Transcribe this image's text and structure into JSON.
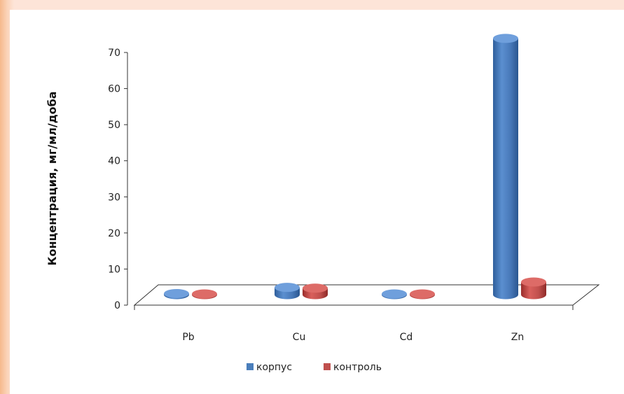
{
  "chart_data": {
    "type": "bar",
    "categories": [
      "Pb",
      "Cu",
      "Cd",
      "Zn"
    ],
    "series": [
      {
        "name": "корпус",
        "values": [
          0.3,
          2.0,
          0.2,
          71.0
        ],
        "color": "#4a7ebb"
      },
      {
        "name": "контроль",
        "values": [
          0.2,
          1.8,
          0.2,
          3.5
        ],
        "color": "#c0504d"
      }
    ],
    "title": "",
    "xlabel": "",
    "ylabel": "Концентрация, мг/мл/доба",
    "ylim": [
      0,
      70
    ],
    "yticks": [
      0,
      10,
      20,
      30,
      40,
      50,
      60,
      70
    ],
    "grid": false,
    "legend": "bottom",
    "style": "3d-cylinder"
  }
}
